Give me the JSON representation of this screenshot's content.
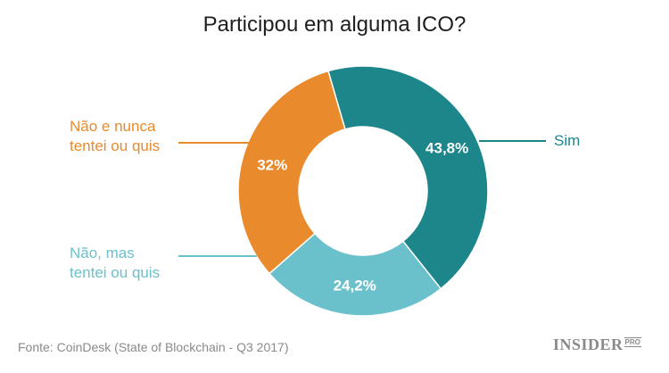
{
  "chart_data": {
    "type": "pie",
    "title": "Participou em alguma ICO?",
    "slices": [
      {
        "label": "Sim",
        "value": 43.8,
        "value_label": "43,8%",
        "color": "#1c868b"
      },
      {
        "label": "Não, mas\ntentei ou quis",
        "value": 24.2,
        "value_label": "24,2%",
        "color": "#6bc1cb"
      },
      {
        "label": "Não e nunca\ntentei ou quis",
        "value": 32,
        "value_label": "32%",
        "color": "#e98a2c"
      }
    ],
    "donut": true,
    "legend": "leader-line labels"
  },
  "source": "Fonte: CoinDesk (State of Blockchain - Q3 2017)",
  "brand": {
    "name": "INSIDER",
    "suffix": "PRO"
  }
}
